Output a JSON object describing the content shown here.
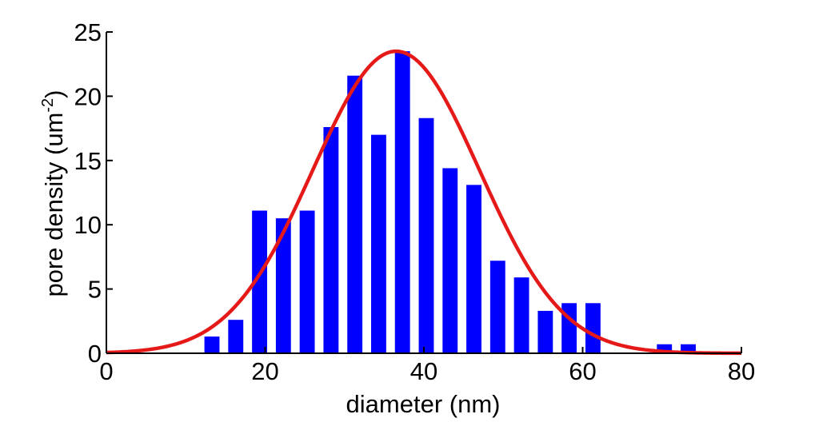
{
  "chart_data": {
    "type": "bar",
    "title": "",
    "xlabel": "diameter (nm)",
    "ylabel_main": "pore density (um",
    "ylabel_sup": "-2",
    "ylabel_close": ")",
    "xlim": [
      0,
      80
    ],
    "ylim": [
      0,
      25
    ],
    "xticks": [
      0,
      20,
      40,
      60,
      80
    ],
    "yticks": [
      0,
      5,
      10,
      15,
      20,
      25
    ],
    "grid": false,
    "bar_color": "#0000ff",
    "bar_width": 1.9,
    "bars": [
      {
        "x": 13.3,
        "y": 1.3
      },
      {
        "x": 16.3,
        "y": 2.6
      },
      {
        "x": 19.3,
        "y": 11.1
      },
      {
        "x": 22.3,
        "y": 10.5
      },
      {
        "x": 25.3,
        "y": 11.1
      },
      {
        "x": 28.3,
        "y": 17.6
      },
      {
        "x": 31.3,
        "y": 21.6
      },
      {
        "x": 34.3,
        "y": 17.0
      },
      {
        "x": 37.3,
        "y": 23.5
      },
      {
        "x": 40.3,
        "y": 18.3
      },
      {
        "x": 43.3,
        "y": 14.4
      },
      {
        "x": 46.3,
        "y": 13.1
      },
      {
        "x": 49.3,
        "y": 7.2
      },
      {
        "x": 52.3,
        "y": 5.9
      },
      {
        "x": 55.3,
        "y": 3.3
      },
      {
        "x": 58.3,
        "y": 3.9
      },
      {
        "x": 61.3,
        "y": 3.9
      },
      {
        "x": 70.3,
        "y": 0.7
      },
      {
        "x": 73.3,
        "y": 0.7
      }
    ],
    "fit": {
      "type": "gaussian",
      "color": "#e61919",
      "peak": 23.5,
      "mean": 36.5,
      "sd": 10.5
    }
  }
}
